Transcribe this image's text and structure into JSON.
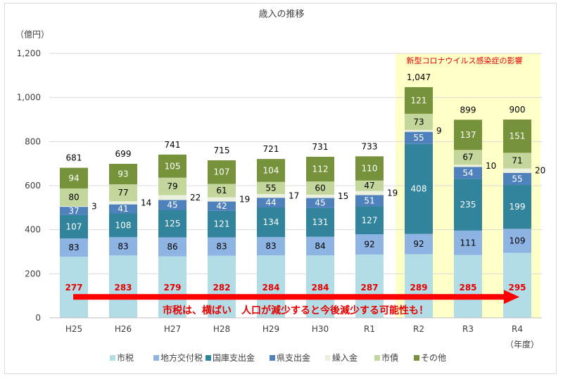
{
  "chart_data": {
    "type": "bar",
    "stacked": true,
    "title": "歳入の推移",
    "ylabel": "（億円）",
    "xlabel": "（年度）",
    "ylim": [
      0,
      1200
    ],
    "yticks": [
      0,
      200,
      400,
      600,
      800,
      1000,
      1200
    ],
    "ytick_labels": [
      "0",
      "200",
      "400",
      "600",
      "800",
      "1,000",
      "1,200"
    ],
    "categories": [
      "H25",
      "H26",
      "H27",
      "H28",
      "H29",
      "H30",
      "R1",
      "R2",
      "R3",
      "R4"
    ],
    "totals": [
      681,
      699,
      741,
      715,
      721,
      731,
      733,
      1047,
      899,
      900
    ],
    "total_labels": [
      "681",
      "699",
      "741",
      "715",
      "721",
      "731",
      "733",
      "1,047",
      "899",
      "900"
    ],
    "series": [
      {
        "name": "市税",
        "color": "#b3dde6",
        "values": [
          277,
          283,
          279,
          282,
          284,
          284,
          287,
          289,
          285,
          295
        ]
      },
      {
        "name": "地方交付税",
        "color": "#8eb4e3",
        "values": [
          83,
          83,
          86,
          83,
          83,
          84,
          92,
          92,
          111,
          109
        ]
      },
      {
        "name": "国庫支出金",
        "color": "#31849b",
        "values": [
          107,
          108,
          125,
          121,
          134,
          131,
          127,
          408,
          235,
          199
        ]
      },
      {
        "name": "県支出金",
        "color": "#4f81bd",
        "values": [
          37,
          41,
          45,
          42,
          44,
          45,
          51,
          55,
          54,
          55
        ]
      },
      {
        "name": "繰入金",
        "color": "#ebf1de",
        "values": [
          3,
          14,
          22,
          19,
          17,
          15,
          19,
          9,
          10,
          20
        ]
      },
      {
        "name": "市債",
        "color": "#c3d69b",
        "values": [
          80,
          77,
          79,
          61,
          55,
          60,
          47,
          73,
          67,
          71
        ]
      },
      {
        "name": "その他",
        "color": "#76933c",
        "values": [
          94,
          93,
          105,
          107,
          104,
          112,
          110,
          121,
          137,
          151
        ]
      }
    ],
    "highlight": {
      "label": "新型コロナウイルス感染症の影響",
      "categories": [
        "R2",
        "R3",
        "R4"
      ],
      "color": "#ffffc8"
    },
    "annotation": {
      "text": "市税は、横ばい　人口が減少すると今後減少する可能性も！",
      "color": "#e60000"
    },
    "legend_position": "bottom",
    "grid": true
  }
}
